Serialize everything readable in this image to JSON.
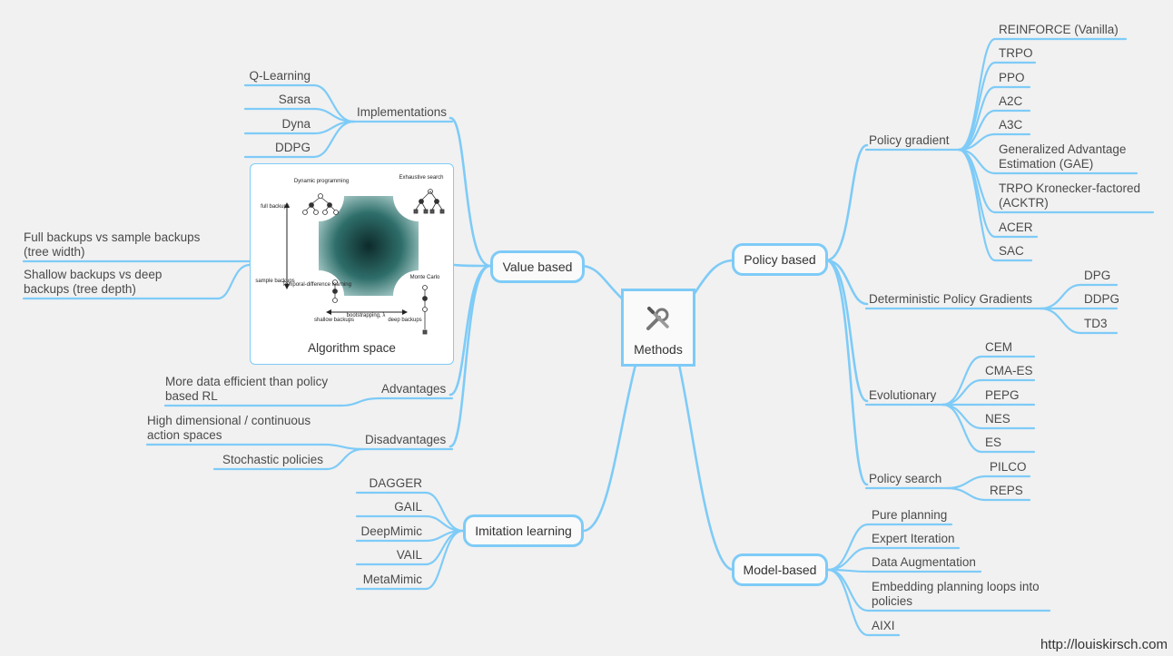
{
  "center": {
    "label": "Methods",
    "icon": "wrench-screwdriver-icon"
  },
  "value_based": {
    "label": "Value based",
    "implementations": {
      "label": "Implementations",
      "items": [
        "Q-Learning",
        "Sarsa",
        "Dyna",
        "DDPG"
      ]
    },
    "algorithm_space": {
      "caption": "Algorithm space",
      "image_labels": {
        "dynamic_programming": "Dynamic programming",
        "exhaustive_search": "Exhaustive search",
        "full_backups": "full backups",
        "sample_backups": "sample backups",
        "temporal_difference": "Temporal-difference learning",
        "monte_carlo": "Monte Carlo",
        "shallow_backups": "shallow backups",
        "bootstrapping": "bootstrapping, λ",
        "deep_backups": "deep backups"
      },
      "notes": [
        [
          "Full backups vs sample backups",
          "(tree width)"
        ],
        [
          "Shallow backups vs deep",
          "backups (tree depth)"
        ]
      ]
    },
    "advantages": {
      "label": "Advantages",
      "items": [
        [
          "More data efficient than policy",
          "based RL"
        ]
      ]
    },
    "disadvantages": {
      "label": "Disadvantages",
      "items": [
        [
          "High dimensional / continuous",
          "action spaces"
        ],
        [
          "Stochastic policies"
        ]
      ]
    }
  },
  "imitation_learning": {
    "label": "Imitation learning",
    "items": [
      "DAGGER",
      "GAIL",
      "DeepMimic",
      "VAIL",
      "MetaMimic"
    ]
  },
  "policy_based": {
    "label": "Policy based",
    "policy_gradient": {
      "label": "Policy gradient",
      "items": [
        [
          "REINFORCE (Vanilla)"
        ],
        [
          "TRPO"
        ],
        [
          "PPO"
        ],
        [
          "A2C"
        ],
        [
          "A3C"
        ],
        [
          "Generalized Advantage",
          "Estimation (GAE)"
        ],
        [
          "TRPO Kronecker-factored",
          "(ACKTR)"
        ],
        [
          "ACER"
        ],
        [
          "SAC"
        ]
      ]
    },
    "deterministic": {
      "label": "Deterministic Policy Gradients",
      "items": [
        "DPG",
        "DDPG",
        "TD3"
      ]
    },
    "evolutionary": {
      "label": "Evolutionary",
      "items": [
        "CEM",
        "CMA-ES",
        "PEPG",
        "NES",
        "ES"
      ]
    },
    "policy_search": {
      "label": "Policy search",
      "items": [
        "PILCO",
        "REPS"
      ]
    }
  },
  "model_based": {
    "label": "Model-based",
    "items": [
      [
        "Pure planning"
      ],
      [
        "Expert Iteration"
      ],
      [
        "Data Augmentation"
      ],
      [
        "Embedding planning loops into",
        "policies"
      ],
      [
        "AIXI"
      ]
    ]
  },
  "credit": "http://louiskirsch.com",
  "colors": {
    "line": "#7ecbf7",
    "text": "#4a4a4a",
    "background": "#f1f1f1"
  }
}
